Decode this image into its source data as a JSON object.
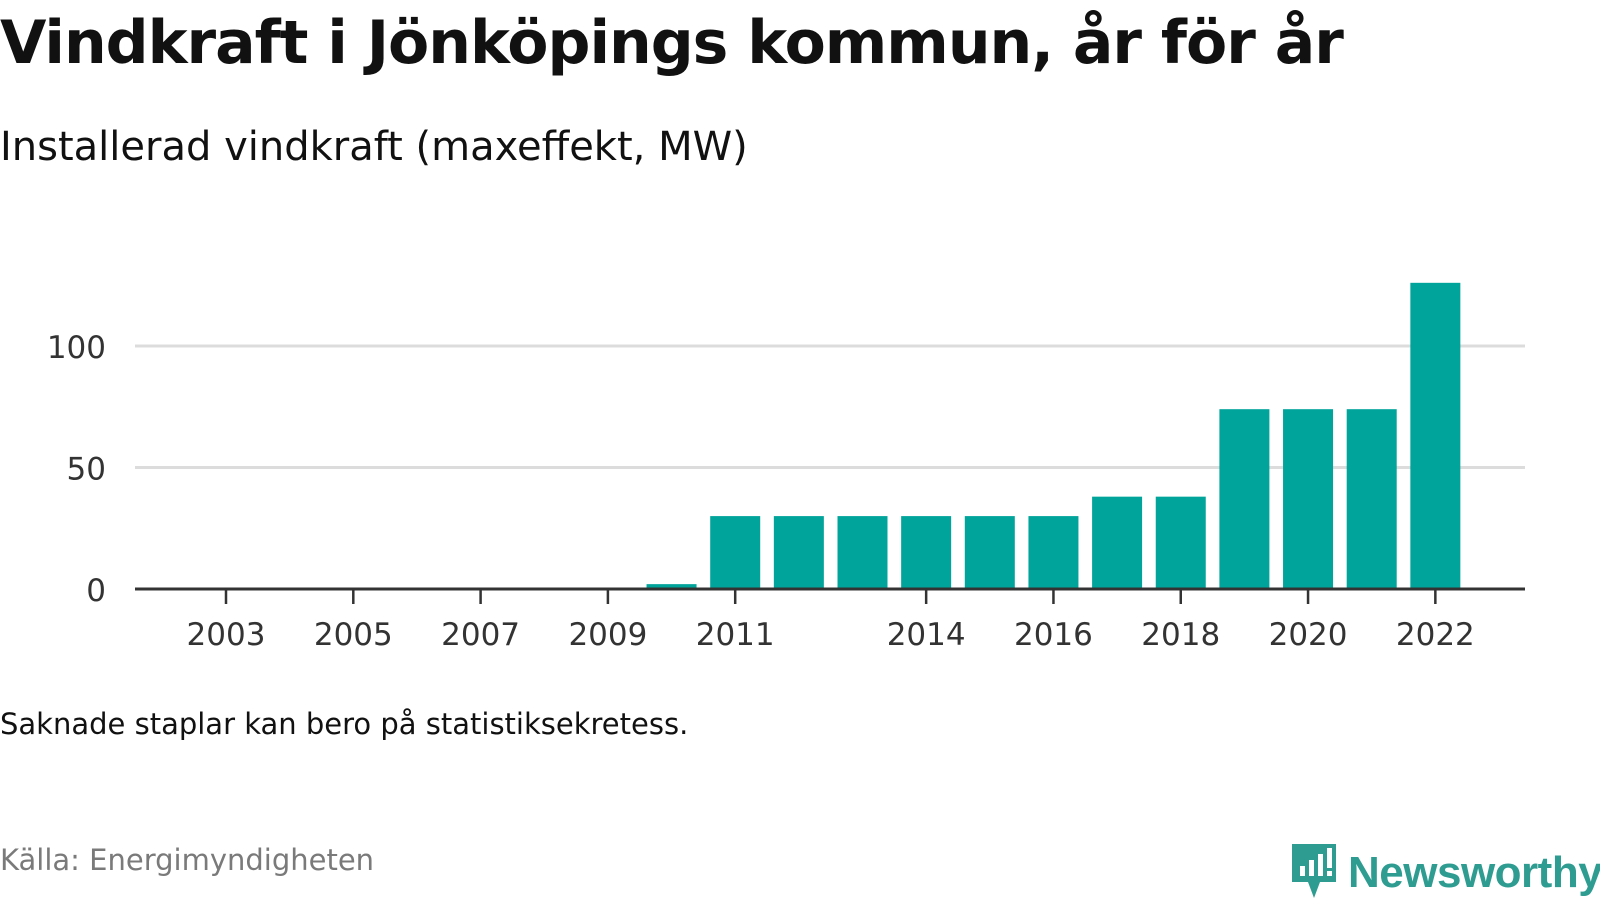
{
  "title": "Vindkraft i Jönköpings kommun, år för år",
  "subtitle": "Installerad vindkraft (maxeffekt, MW)",
  "note": "Saknade staplar kan bero på statistiksekretess.",
  "source": "Källa: Energimyndigheten",
  "brand": {
    "name": "Newsworthy",
    "color": "#2f9c91",
    "icon": "bar-chart-speech-icon"
  },
  "colors": {
    "bar": "#00a49a",
    "grid": "#dcdcdc",
    "axis": "#333333"
  },
  "chart_data": {
    "type": "bar",
    "title": "Vindkraft i Jönköpings kommun, år för år",
    "subtitle": "Installerad vindkraft (maxeffekt, MW)",
    "categories": [
      2003,
      2004,
      2005,
      2006,
      2007,
      2008,
      2009,
      2010,
      2011,
      2012,
      2013,
      2014,
      2015,
      2016,
      2017,
      2018,
      2019,
      2020,
      2021,
      2022
    ],
    "values": [
      0,
      0,
      0,
      0,
      0,
      0,
      0,
      2,
      30,
      30,
      30,
      30,
      30,
      30,
      38,
      38,
      74,
      74,
      74,
      126
    ],
    "xticks": [
      2003,
      2005,
      2007,
      2009,
      2011,
      2014,
      2016,
      2018,
      2020,
      2022
    ],
    "yticks": [
      0,
      50,
      100
    ],
    "ylim": [
      0,
      135
    ],
    "xlabel": "",
    "ylabel": "",
    "grid": true
  }
}
